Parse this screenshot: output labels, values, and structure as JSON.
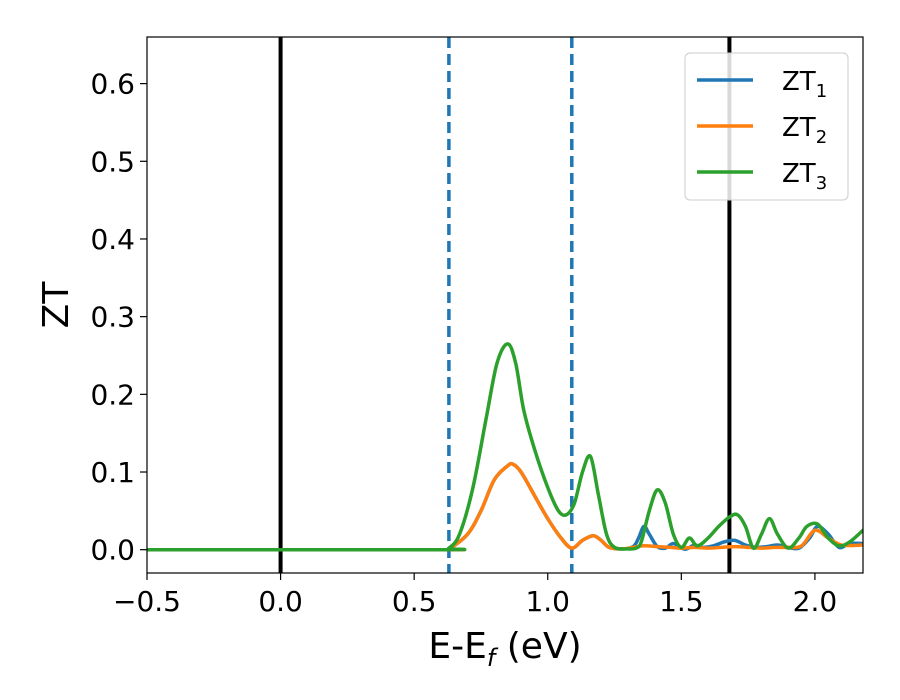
{
  "chart_data": {
    "type": "line",
    "xlabel_main": "E-E",
    "xlabel_sub": "f",
    "xlabel_unit": " (eV)",
    "ylabel": "ZT",
    "xlim": [
      -0.5,
      2.18
    ],
    "ylim": [
      -0.03,
      0.66
    ],
    "xticks": [
      -0.5,
      0.0,
      0.5,
      1.0,
      1.5,
      2.0
    ],
    "xtick_labels": [
      "−0.5",
      "0.0",
      "0.5",
      "1.0",
      "1.5",
      "2.0"
    ],
    "yticks": [
      0.0,
      0.1,
      0.2,
      0.3,
      0.4,
      0.5,
      0.6
    ],
    "ytick_labels": [
      "0.0",
      "0.1",
      "0.2",
      "0.3",
      "0.4",
      "0.5",
      "0.6"
    ],
    "legend_position": "top-right",
    "vlines": [
      {
        "x": 0.0,
        "style": "solid",
        "color": "#000000"
      },
      {
        "x": 1.68,
        "style": "solid",
        "color": "#000000"
      },
      {
        "x": 0.63,
        "style": "dashed",
        "color": "#1f77b4"
      },
      {
        "x": 1.09,
        "style": "dashed",
        "color": "#1f77b4"
      }
    ],
    "series": [
      {
        "name": "ZT",
        "name_sub": "1",
        "color": "#1f77b4",
        "x": [
          -0.5,
          0.6,
          0.63,
          0.7,
          0.75,
          0.8,
          0.85,
          0.87,
          0.9,
          0.95,
          1.0,
          1.05,
          1.09,
          1.13,
          1.17,
          1.2,
          1.23,
          1.28,
          1.32,
          1.34,
          1.36,
          1.38,
          1.41,
          1.44,
          1.47,
          1.5,
          1.52,
          1.55,
          1.58,
          1.62,
          1.66,
          1.7,
          1.74,
          1.78,
          1.82,
          1.86,
          1.9,
          1.94,
          1.98,
          2.01,
          2.05,
          2.09,
          2.13,
          2.18
        ],
        "y": [
          0.0,
          0.0,
          0.001,
          0.02,
          0.05,
          0.09,
          0.108,
          0.11,
          0.1,
          0.07,
          0.04,
          0.015,
          0.002,
          0.012,
          0.018,
          0.012,
          0.003,
          0.001,
          0.004,
          0.015,
          0.03,
          0.02,
          0.004,
          0.002,
          0.008,
          0.002,
          0.001,
          0.006,
          0.003,
          0.005,
          0.01,
          0.012,
          0.006,
          0.003,
          0.004,
          0.006,
          0.003,
          0.002,
          0.015,
          0.03,
          0.02,
          0.003,
          0.008,
          0.008
        ]
      },
      {
        "name": "ZT",
        "name_sub": "2",
        "color": "#ff7f0e",
        "x": [
          -0.5,
          0.6,
          0.63,
          0.7,
          0.75,
          0.8,
          0.85,
          0.87,
          0.9,
          0.95,
          1.0,
          1.05,
          1.09,
          1.13,
          1.17,
          1.2,
          1.23,
          1.28,
          1.32,
          1.36,
          1.41,
          1.46,
          1.5,
          1.55,
          1.6,
          1.65,
          1.7,
          1.75,
          1.8,
          1.85,
          1.9,
          1.95,
          2.0,
          2.05,
          2.1,
          2.18
        ],
        "y": [
          0.0,
          0.0,
          0.001,
          0.02,
          0.05,
          0.09,
          0.108,
          0.11,
          0.1,
          0.07,
          0.04,
          0.015,
          0.002,
          0.012,
          0.018,
          0.012,
          0.003,
          0.001,
          0.003,
          0.005,
          0.004,
          0.003,
          0.002,
          0.003,
          0.002,
          0.003,
          0.004,
          0.003,
          0.002,
          0.003,
          0.003,
          0.005,
          0.025,
          0.015,
          0.006,
          0.006
        ]
      },
      {
        "name": "ZT",
        "name_sub": "3",
        "color": "#2ca02c",
        "x": [
          -0.5,
          0.6,
          0.63,
          0.67,
          0.72,
          0.77,
          0.81,
          0.85,
          0.88,
          0.91,
          0.95,
          1.0,
          1.04,
          1.07,
          1.1,
          1.13,
          1.16,
          1.19,
          1.22,
          1.25,
          1.3,
          1.33,
          1.35,
          1.38,
          1.41,
          1.44,
          1.47,
          1.5,
          1.53,
          1.56,
          1.6,
          1.64,
          1.68,
          1.71,
          1.74,
          1.77,
          1.8,
          1.83,
          1.86,
          1.9,
          1.94,
          1.97,
          2.01,
          2.05,
          2.09,
          2.13,
          2.18
        ],
        "y": [
          0.0,
          0.0,
          0.002,
          0.02,
          0.08,
          0.17,
          0.24,
          0.265,
          0.24,
          0.18,
          0.13,
          0.08,
          0.05,
          0.045,
          0.06,
          0.1,
          0.12,
          0.07,
          0.02,
          0.003,
          0.001,
          0.002,
          0.01,
          0.05,
          0.077,
          0.06,
          0.02,
          0.003,
          0.015,
          0.005,
          0.015,
          0.03,
          0.042,
          0.045,
          0.03,
          0.002,
          0.02,
          0.04,
          0.02,
          0.002,
          0.015,
          0.03,
          0.033,
          0.015,
          0.005,
          0.01,
          0.025
        ]
      }
    ]
  }
}
